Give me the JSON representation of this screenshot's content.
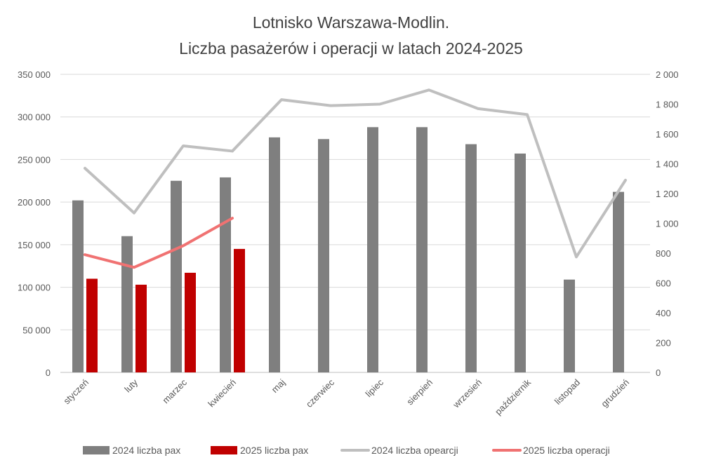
{
  "chart_data": {
    "type": "bar",
    "title_line1": "Lotnisko Warszawa-Modlin.",
    "title_line2": "Liczba pasażerów i operacji w latach 2024-2025",
    "categories": [
      "styczeń",
      "luty",
      "marzec",
      "kwiecień",
      "maj",
      "czerwiec",
      "lipiec",
      "sierpień",
      "wrzesień",
      "październik",
      "listopad",
      "grudzień"
    ],
    "y_left": {
      "ylim": [
        0,
        350000
      ],
      "ticks": [
        0,
        50000,
        100000,
        150000,
        200000,
        250000,
        300000,
        350000
      ],
      "tick_labels": [
        "0",
        "50 000",
        "100 000",
        "150 000",
        "200 000",
        "250 000",
        "300 000",
        "350 000"
      ]
    },
    "y_right": {
      "ylim": [
        0,
        2000
      ],
      "ticks": [
        0,
        200,
        400,
        600,
        800,
        1000,
        1200,
        1400,
        1600,
        1800,
        2000
      ],
      "tick_labels": [
        "0",
        "200",
        "400",
        "600",
        "800",
        "1 000",
        "1 200",
        "1 400",
        "1 600",
        "1 800",
        "2 000"
      ]
    },
    "grid": true,
    "legend_position": "bottom",
    "series": [
      {
        "name": "2024 liczba pax",
        "kind": "bar",
        "axis": "left",
        "color": "#7f7f7f",
        "values": [
          202000,
          160000,
          225000,
          229000,
          276000,
          274000,
          288000,
          288000,
          268000,
          257000,
          109000,
          212000
        ]
      },
      {
        "name": "2025 liczba pax",
        "kind": "bar",
        "axis": "left",
        "color": "#c00000",
        "values": [
          110000,
          103000,
          117000,
          145000,
          null,
          null,
          null,
          null,
          null,
          null,
          null,
          null
        ]
      },
      {
        "name": "2024 liczba opearcji",
        "kind": "line",
        "axis": "right",
        "color": "#bfbfbf",
        "values": [
          1370,
          1070,
          1520,
          1485,
          1830,
          1790,
          1800,
          1895,
          1770,
          1730,
          775,
          1290
        ]
      },
      {
        "name": "2025 liczba operacji",
        "kind": "line",
        "axis": "right",
        "color": "#f07272",
        "values": [
          790,
          705,
          850,
          1035,
          null,
          null,
          null,
          null,
          null,
          null,
          null,
          null
        ]
      }
    ]
  }
}
